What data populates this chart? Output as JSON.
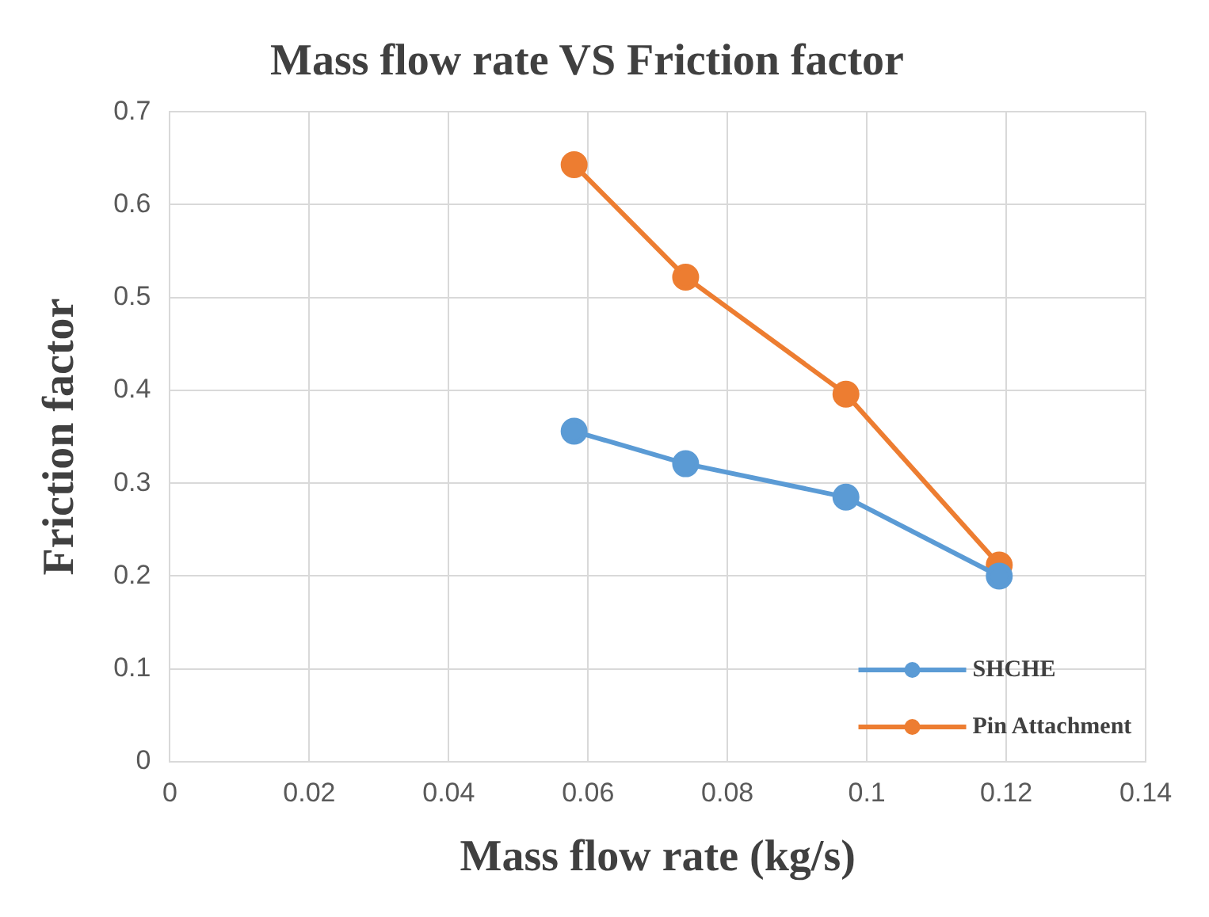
{
  "chart_data": {
    "type": "line",
    "title": "Mass flow rate VS Friction factor",
    "xlabel": "Mass flow rate (kg/s)",
    "ylabel": "Friction factor",
    "series": [
      {
        "name": "SHCHE",
        "color": "#5b9bd5",
        "x": [
          0.058,
          0.074,
          0.097,
          0.119
        ],
        "values": [
          0.356,
          0.321,
          0.285,
          0.2
        ]
      },
      {
        "name": "Pin Attachment",
        "color": "#ed7d31",
        "x": [
          0.058,
          0.074,
          0.097,
          0.119
        ],
        "values": [
          0.643,
          0.522,
          0.396,
          0.212
        ]
      }
    ],
    "xlim": [
      0,
      0.14
    ],
    "xticks": [
      0,
      0.02,
      0.04,
      0.06,
      0.08,
      0.1,
      0.12,
      0.14
    ],
    "ylim": [
      0,
      0.7
    ],
    "yticks": [
      0,
      0.1,
      0.2,
      0.3,
      0.4,
      0.5,
      0.6,
      0.7
    ],
    "grid": true,
    "legend": "bottom right",
    "marker": "circle",
    "line_style": "solid"
  }
}
